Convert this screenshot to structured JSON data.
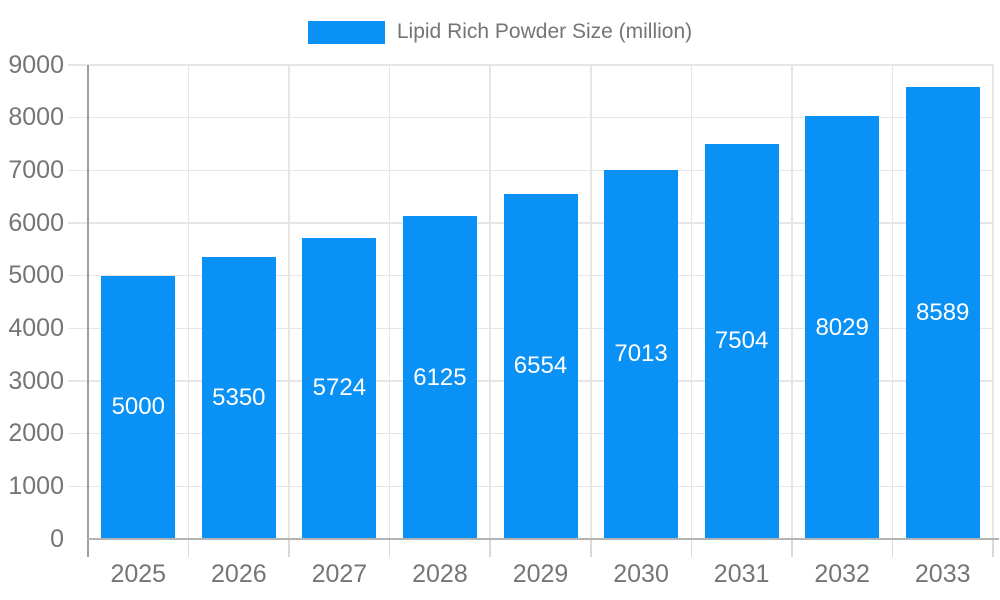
{
  "chart_data": {
    "type": "bar",
    "title": "Lipid Rich Powder Size (million)",
    "series_name": "Lipid Rich Powder Size (million)",
    "categories": [
      "2025",
      "2026",
      "2027",
      "2028",
      "2029",
      "2030",
      "2031",
      "2032",
      "2033"
    ],
    "values": [
      5000,
      5350,
      5724,
      6125,
      6554,
      7013,
      7504,
      8029,
      8589
    ],
    "data_labels": [
      "5000",
      "5350",
      "5724",
      "6125",
      "6554",
      "7013",
      "7504",
      "8029",
      "8589"
    ],
    "xlabel": "",
    "ylabel": "",
    "ylim": [
      0,
      9000
    ],
    "y_tick_step": 1000,
    "y_tick_labels": [
      "0",
      "1000",
      "2000",
      "3000",
      "4000",
      "5000",
      "6000",
      "7000",
      "8000",
      "9000"
    ],
    "grid": true,
    "legend_position": "top",
    "data_label_position": "inside-center"
  },
  "colors": {
    "bar": "#0991f5",
    "grid_line": "#e6e6e6",
    "axis_line_y": "#9e9e9e",
    "axis_line_x": "#b3b3b3",
    "tick": "#d9d9d9",
    "axis_label_text": "#757575",
    "legend_text": "#757575",
    "bar_label_text": "#ffffff",
    "background": "#ffffff"
  }
}
